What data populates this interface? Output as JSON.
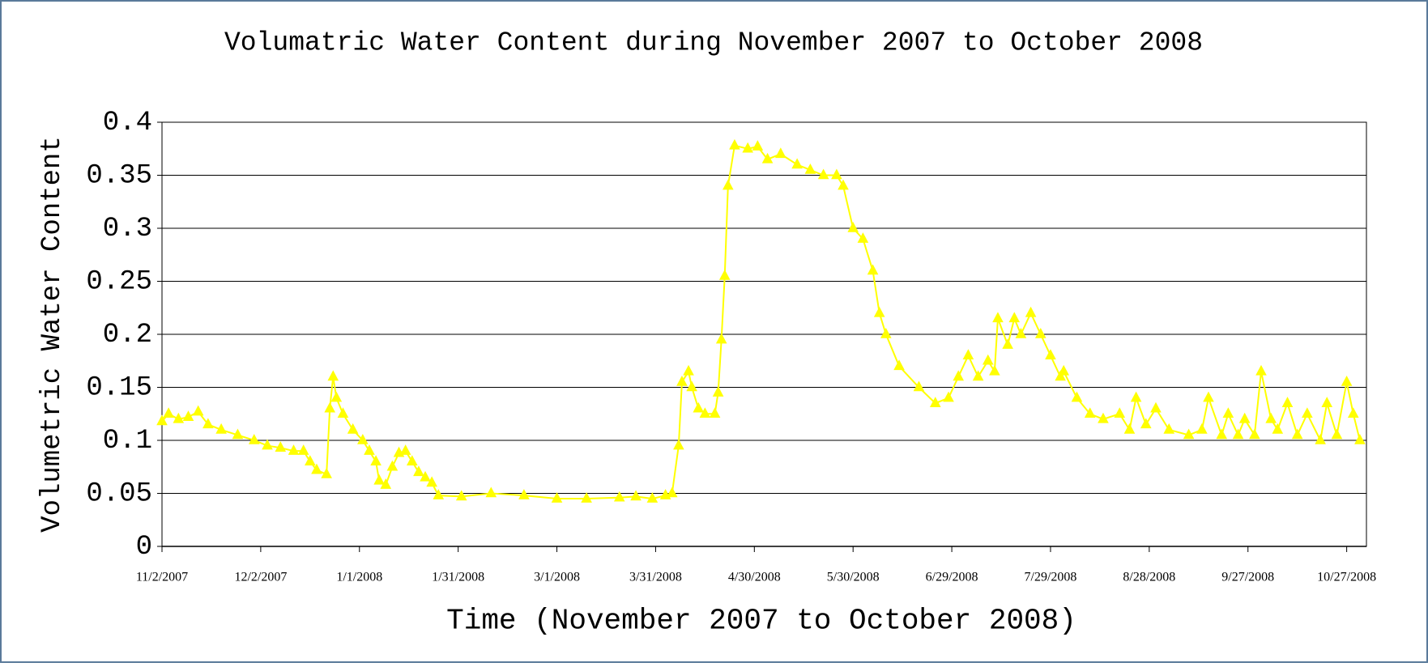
{
  "chart_data": {
    "type": "line",
    "title": "Volumatric Water Content during November 2007 to October 2008",
    "x_label": "Time (November 2007 to October 2008)",
    "y_label": "Volumetric Water Content",
    "x": [
      "11/2/2007",
      "11/4/2007",
      "11/7/2007",
      "11/10/2007",
      "11/13/2007",
      "11/16/2007",
      "11/20/2007",
      "11/25/2007",
      "11/30/2007",
      "12/4/2007",
      "12/8/2007",
      "12/12/2007",
      "12/15/2007",
      "12/17/2007",
      "12/19/2007",
      "12/22/2007",
      "12/23/2007",
      "12/24/2007",
      "12/25/2007",
      "12/27/2007",
      "12/30/2007",
      "1/2/2008",
      "1/4/2008",
      "1/6/2008",
      "1/7/2008",
      "1/9/2008",
      "1/11/2008",
      "1/13/2008",
      "1/15/2008",
      "1/17/2008",
      "1/19/2008",
      "1/21/2008",
      "1/23/2008",
      "1/25/2008",
      "2/1/2008",
      "2/10/2008",
      "2/20/2008",
      "3/1/2008",
      "3/10/2008",
      "3/20/2008",
      "3/25/2008",
      "3/30/2008",
      "4/3/2008",
      "4/5/2008",
      "4/7/2008",
      "4/8/2008",
      "4/10/2008",
      "4/11/2008",
      "4/13/2008",
      "4/15/2008",
      "4/18/2008",
      "4/19/2008",
      "4/20/2008",
      "4/21/2008",
      "4/22/2008",
      "4/24/2008",
      "4/28/2008",
      "5/1/2008",
      "5/4/2008",
      "5/8/2008",
      "5/13/2008",
      "5/17/2008",
      "5/21/2008",
      "5/25/2008",
      "5/27/2008",
      "5/30/2008",
      "6/2/2008",
      "6/5/2008",
      "6/7/2008",
      "6/9/2008",
      "6/13/2008",
      "6/19/2008",
      "6/24/2008",
      "6/28/2008",
      "7/1/2008",
      "7/4/2008",
      "7/7/2008",
      "7/10/2008",
      "7/12/2008",
      "7/13/2008",
      "7/16/2008",
      "7/18/2008",
      "7/20/2008",
      "7/23/2008",
      "7/26/2008",
      "7/29/2008",
      "8/1/2008",
      "8/2/2008",
      "8/6/2008",
      "8/10/2008",
      "8/14/2008",
      "8/19/2008",
      "8/22/2008",
      "8/24/2008",
      "8/27/2008",
      "8/30/2008",
      "9/3/2008",
      "9/9/2008",
      "9/13/2008",
      "9/15/2008",
      "9/19/2008",
      "9/21/2008",
      "9/24/2008",
      "9/26/2008",
      "9/29/2008",
      "10/1/2008",
      "10/4/2008",
      "10/6/2008",
      "10/9/2008",
      "10/12/2008",
      "10/15/2008",
      "10/19/2008",
      "10/21/2008",
      "10/24/2008",
      "10/27/2008",
      "10/29/2008",
      "10/31/2008"
    ],
    "series": [
      {
        "name": "Volumetric Water Content",
        "color": "#ffff00",
        "values": [
          0.118,
          0.125,
          0.12,
          0.122,
          0.127,
          0.115,
          0.11,
          0.105,
          0.1,
          0.095,
          0.093,
          0.09,
          0.09,
          0.08,
          0.072,
          0.068,
          0.13,
          0.16,
          0.14,
          0.125,
          0.11,
          0.1,
          0.09,
          0.08,
          0.062,
          0.058,
          0.075,
          0.088,
          0.09,
          0.08,
          0.07,
          0.065,
          0.06,
          0.048,
          0.047,
          0.05,
          0.048,
          0.045,
          0.045,
          0.046,
          0.047,
          0.045,
          0.048,
          0.05,
          0.095,
          0.155,
          0.165,
          0.15,
          0.13,
          0.125,
          0.125,
          0.145,
          0.195,
          0.255,
          0.34,
          0.378,
          0.375,
          0.377,
          0.365,
          0.37,
          0.36,
          0.355,
          0.35,
          0.35,
          0.34,
          0.3,
          0.29,
          0.26,
          0.22,
          0.2,
          0.17,
          0.15,
          0.135,
          0.14,
          0.16,
          0.18,
          0.16,
          0.175,
          0.165,
          0.215,
          0.19,
          0.215,
          0.2,
          0.22,
          0.2,
          0.18,
          0.16,
          0.165,
          0.14,
          0.125,
          0.12,
          0.125,
          0.11,
          0.14,
          0.115,
          0.13,
          0.11,
          0.105,
          0.11,
          0.14,
          0.105,
          0.125,
          0.105,
          0.12,
          0.105,
          0.165,
          0.12,
          0.11,
          0.135,
          0.105,
          0.125,
          0.1,
          0.135,
          0.105,
          0.155,
          0.125,
          0.1
        ]
      }
    ],
    "xlim": [
      "11/2/2007",
      "11/2/2008"
    ],
    "xticks": [
      "11/2/2007",
      "12/2/2007",
      "1/1/2008",
      "1/31/2008",
      "3/1/2008",
      "3/31/2008",
      "4/30/2008",
      "5/30/2008",
      "6/29/2008",
      "7/29/2008",
      "8/28/2008",
      "9/27/2008",
      "10/27/2008"
    ],
    "ylim": [
      0,
      0.4
    ],
    "yticks": [
      0,
      0.05,
      0.1,
      0.15,
      0.2,
      0.25,
      0.3,
      0.35,
      0.4
    ],
    "grid": true,
    "marker": "triangle"
  }
}
